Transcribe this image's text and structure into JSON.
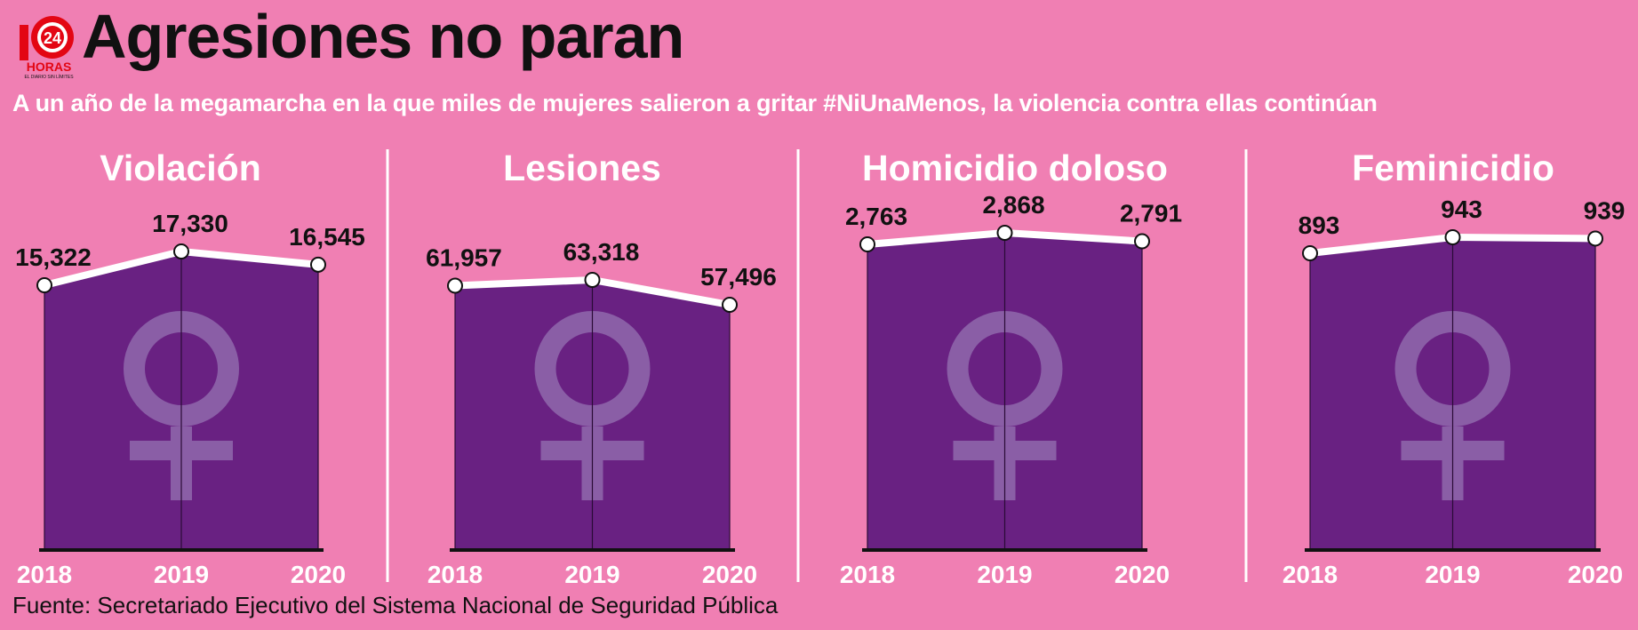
{
  "header": {
    "title": "Agresiones no paran",
    "subtitle": "A un año de la megamarcha en la que miles de mujeres salieron a gritar #NiUnaMenos, la violencia contra ellas continúan",
    "logo_number": "24",
    "logo_text": "HORAS",
    "logo_tagline": "EL DIARIO SIN LÍMITES"
  },
  "colors": {
    "background": "#f07fb3",
    "area_fill": "#692182",
    "line": "#ffffff",
    "symbol": "#8a5ea6",
    "axis": "#111111"
  },
  "icons": {
    "panel_symbol": "female-symbol-icon",
    "logo": "24-horas-logo"
  },
  "chart_data": [
    {
      "type": "area",
      "title": "Violación",
      "x": [
        "2018",
        "2019",
        "2020"
      ],
      "values": [
        15322,
        17330,
        16545
      ],
      "labels": [
        "15,322",
        "17,330",
        "16,545"
      ]
    },
    {
      "type": "area",
      "title": "Lesiones",
      "x": [
        "2018",
        "2019",
        "2020"
      ],
      "values": [
        61957,
        63318,
        57496
      ],
      "labels": [
        "61,957",
        "63,318",
        "57,496"
      ]
    },
    {
      "type": "area",
      "title": "Homicidio doloso",
      "x": [
        "2018",
        "2019",
        "2020"
      ],
      "values": [
        2763,
        2868,
        2791
      ],
      "labels": [
        "2,763",
        "2,868",
        "2,791"
      ]
    },
    {
      "type": "area",
      "title": "Feminicidio",
      "x": [
        "2018",
        "2019",
        "2020"
      ],
      "values": [
        893,
        943,
        939
      ],
      "labels": [
        "893",
        "943",
        "939"
      ]
    }
  ],
  "footer": {
    "source": "Fuente: Secretariado Ejecutivo del Sistema Nacional de Seguridad Pública"
  }
}
